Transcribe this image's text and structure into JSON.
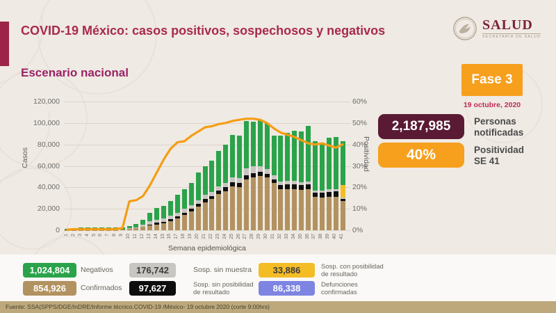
{
  "header": {
    "title": "COVID-19 México: casos positivos, sospechosos y negativos",
    "subtitle": "Escenario nacional",
    "logo": {
      "title": "SALUD",
      "subtitle": "SECRETARÍA DE SALUD"
    },
    "phase_label": "Fase 3",
    "date": "19 octubre, 2020"
  },
  "stats": [
    {
      "value": "2,187,985",
      "label": "Personas\nnotificadas",
      "color": "#5A1A34",
      "text_color": "#FFFFFF"
    },
    {
      "value": "40%",
      "label": "Positividad\nSE 41",
      "color": "#F6A01D",
      "text_color": "#FFFFFF"
    }
  ],
  "chart_data": {
    "type": "bar",
    "subtype": "stacked-bar-with-line",
    "x_label": "Semana epidemiológica",
    "y_left_label": "Casos",
    "y_right_label": "Positividad",
    "x": [
      1,
      2,
      3,
      4,
      5,
      6,
      7,
      8,
      9,
      10,
      11,
      12,
      13,
      14,
      15,
      16,
      17,
      18,
      19,
      20,
      21,
      22,
      23,
      24,
      25,
      26,
      27,
      28,
      29,
      30,
      31,
      32,
      33,
      34,
      35,
      36,
      37,
      38,
      39,
      40,
      41
    ],
    "ylim_left": [
      0,
      120000
    ],
    "ylim_right": [
      0,
      60
    ],
    "yticks_left": [
      "0",
      "20,000",
      "40,000",
      "60,000",
      "80,000",
      "100,000",
      "120,000"
    ],
    "yticks_right": [
      "0%",
      "10%",
      "20%",
      "30%",
      "40%",
      "50%",
      "60%"
    ],
    "grid": true,
    "series": [
      {
        "key": "confirmados",
        "name": "Confirmados",
        "color": "#B29260",
        "values": [
          100,
          200,
          300,
          300,
          300,
          300,
          300,
          300,
          400,
          1000,
          1800,
          3000,
          4500,
          5500,
          6500,
          8500,
          11000,
          14000,
          17500,
          22000,
          26000,
          29000,
          34000,
          36500,
          41000,
          40500,
          47500,
          49500,
          50500,
          49000,
          44000,
          38500,
          38500,
          38500,
          37500,
          38000,
          31000,
          30500,
          31000,
          31000,
          27000
        ]
      },
      {
        "key": "sosp-sin-posibilidad",
        "name": "Sosp. sin posibilidad de resultado",
        "color": "#101010",
        "values": [
          0,
          0,
          0,
          0,
          0,
          0,
          0,
          0,
          0,
          200,
          300,
          500,
          1000,
          1500,
          1500,
          2000,
          2000,
          2500,
          2500,
          2500,
          3000,
          3000,
          3200,
          3500,
          3500,
          3500,
          4000,
          4000,
          4000,
          3500,
          3500,
          4000,
          4500,
          4500,
          4500,
          5000,
          4000,
          4500,
          5000,
          5500,
          2000
        ]
      },
      {
        "key": "sosp-sin-muestra",
        "name": "Sosp. sin muestra",
        "color": "#C8C6C2",
        "values": [
          200,
          300,
          300,
          300,
          300,
          300,
          300,
          300,
          300,
          500,
          800,
          1500,
          3000,
          3000,
          3000,
          3000,
          3500,
          3500,
          3500,
          3500,
          4000,
          4000,
          4000,
          4000,
          4500,
          4500,
          6000,
          6000,
          5000,
          4500,
          4000,
          3000,
          3000,
          3000,
          2500,
          2500,
          2000,
          2000,
          2000,
          2000,
          1500
        ]
      },
      {
        "key": "sosp-con-posibilidad",
        "name": "Sosp. con posibilidad de resultado",
        "color": "#F4BD26",
        "values": [
          0,
          0,
          0,
          0,
          0,
          0,
          0,
          0,
          0,
          0,
          0,
          0,
          0,
          0,
          0,
          0,
          0,
          0,
          0,
          0,
          0,
          0,
          0,
          0,
          0,
          0,
          0,
          0,
          0,
          0,
          0,
          0,
          0,
          0,
          0,
          0,
          0,
          0,
          0,
          0,
          12000
        ]
      },
      {
        "key": "negativos",
        "name": "Negativos",
        "color": "#2AA34B",
        "values": [
          1200,
          1500,
          1900,
          1900,
          1900,
          1900,
          1900,
          1900,
          1800,
          2300,
          3100,
          5000,
          8000,
          10500,
          11500,
          13500,
          16500,
          18000,
          20500,
          26000,
          27000,
          29000,
          32800,
          36000,
          40000,
          39500,
          44500,
          41500,
          43500,
          43000,
          36500,
          42500,
          45000,
          47000,
          47500,
          51500,
          46000,
          45000,
          48000,
          48500,
          40500
        ]
      }
    ],
    "line": {
      "name": "Positividad (%)",
      "color": "#F49D15",
      "values": [
        0.3,
        0.5,
        0.5,
        0.5,
        0.5,
        0.5,
        0.5,
        0.5,
        1,
        13.5,
        14,
        16,
        21,
        27,
        33,
        38,
        41,
        41.5,
        44,
        46,
        48,
        48.5,
        49.5,
        50,
        51,
        51.5,
        52,
        52,
        51.5,
        50,
        47.5,
        45.5,
        44.5,
        43.5,
        42,
        40.5,
        40,
        40.5,
        39.5,
        38.5,
        40
      ]
    }
  },
  "legend": [
    {
      "key": "negativos",
      "value": "1,024,804",
      "label": "Negativos",
      "color": "#2AA34B",
      "text_color": "#FFFFFF"
    },
    {
      "key": "sosp-sin-muestra",
      "value": "176,742",
      "label": "Sosp. sin muestra",
      "color": "#C8C6C2",
      "text_color": "#3C3C3C"
    },
    {
      "key": "sosp-con-posibilidad",
      "value": "33,886",
      "label": "Sosp. con posibilidad de resultado",
      "color": "#F4BD26",
      "text_color": "#3C3C3C"
    },
    {
      "key": "confirmados",
      "value": "854,926",
      "label": "Confirmados",
      "color": "#B29260",
      "text_color": "#FFFFFF"
    },
    {
      "key": "sosp-sin-posibilidad",
      "value": "97,627",
      "label": "Sosp. sin posibilidad de resultado",
      "color": "#0D0D0D",
      "text_color": "#FFFFFF"
    },
    {
      "key": "defunciones",
      "value": "86,338",
      "label": "Defunciones confirmadas",
      "color": "#7D84E2",
      "text_color": "#FFFFFF"
    }
  ],
  "footer": {
    "source": "Fuente: SSA(SPPS/DGE/InDRE/Informe técnico.COVID-19 /México- 19 octubre 2020 (corte 9:00hrs)"
  }
}
